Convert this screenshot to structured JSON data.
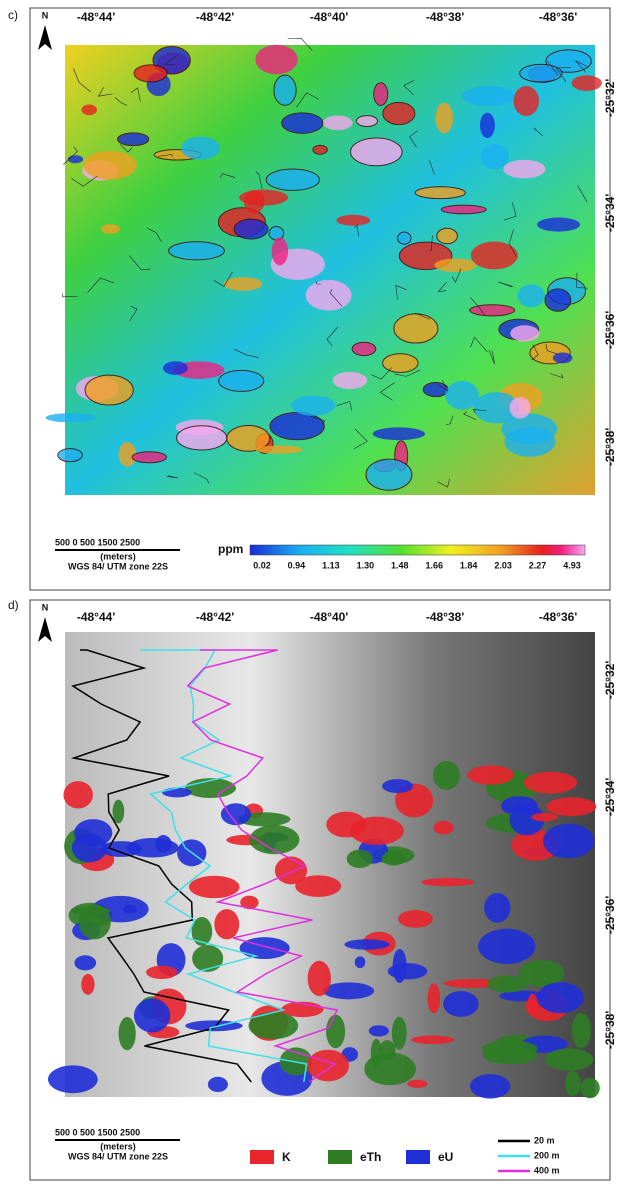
{
  "panel_c": {
    "label": "c)",
    "north": "N",
    "longitudes": [
      "-48°44'",
      "-48°42'",
      "-48°40'",
      "-48°38'",
      "-48°36'"
    ],
    "latitudes": [
      "-25°32'",
      "-25°34'",
      "-25°36'",
      "-25°38'"
    ],
    "scale": {
      "ticks": "500 0 500   1500  2500",
      "unit": "(meters)",
      "datum": "WGS 84/ UTM zone 22S"
    },
    "colorbar": {
      "unit": "ppm",
      "labels": [
        "0.02",
        "0.94",
        "1.13",
        "1.30",
        "1.48",
        "1.66",
        "1.84",
        "2.03",
        "2.27",
        "4.93"
      ]
    }
  },
  "panel_d": {
    "label": "d)",
    "north": "N",
    "longitudes": [
      "-48°44'",
      "-48°42'",
      "-48°40'",
      "-48°38'",
      "-48°36'"
    ],
    "latitudes": [
      "-25°32'",
      "-25°34'",
      "-25°36'",
      "-25°38'"
    ],
    "scale": {
      "ticks": "500 0 500   1500  2500",
      "unit": "(meters)",
      "datum": "WGS 84/ UTM zone 22S"
    },
    "legend": [
      {
        "label": "K",
        "color": "#e8242c"
      },
      {
        "label": "eTh",
        "color": "#2e7d23"
      },
      {
        "label": "eU",
        "color": "#1f2fd6"
      }
    ],
    "contours": [
      {
        "label": "20 m",
        "color": "#000000"
      },
      {
        "label": "200 m",
        "color": "#3fe0e8"
      },
      {
        "label": "400 m",
        "color": "#e02ee0"
      }
    ]
  }
}
